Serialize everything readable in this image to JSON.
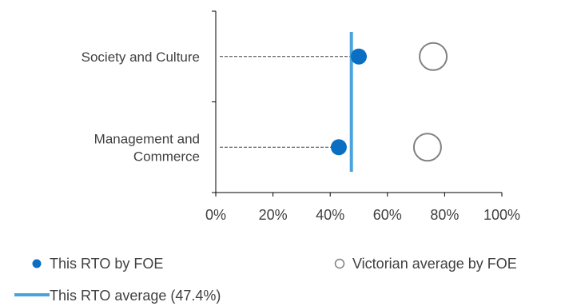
{
  "chart_data": {
    "type": "scatter",
    "title": "",
    "xlabel": "",
    "ylabel": "",
    "xlim": [
      0,
      100
    ],
    "x_ticks": [
      "0%",
      "20%",
      "40%",
      "60%",
      "80%",
      "100%"
    ],
    "categories": [
      "Society and Culture",
      "Management and Commerce"
    ],
    "category_label_lines": [
      [
        "Society and Culture"
      ],
      [
        "Management and",
        "Commerce"
      ]
    ],
    "series": [
      {
        "name": "This RTO by FOE",
        "marker": "filled-circle",
        "color": "#0a6fc2",
        "values": [
          50,
          43
        ]
      },
      {
        "name": "Victorian average by FOE",
        "marker": "hollow-circle",
        "color": "#808080",
        "values": [
          76,
          74
        ]
      }
    ],
    "reference_line": {
      "name": "This RTO average (47.4%)",
      "value": 47.4,
      "color": "#4aa3dc"
    },
    "grid": false,
    "legend_position": "bottom"
  }
}
